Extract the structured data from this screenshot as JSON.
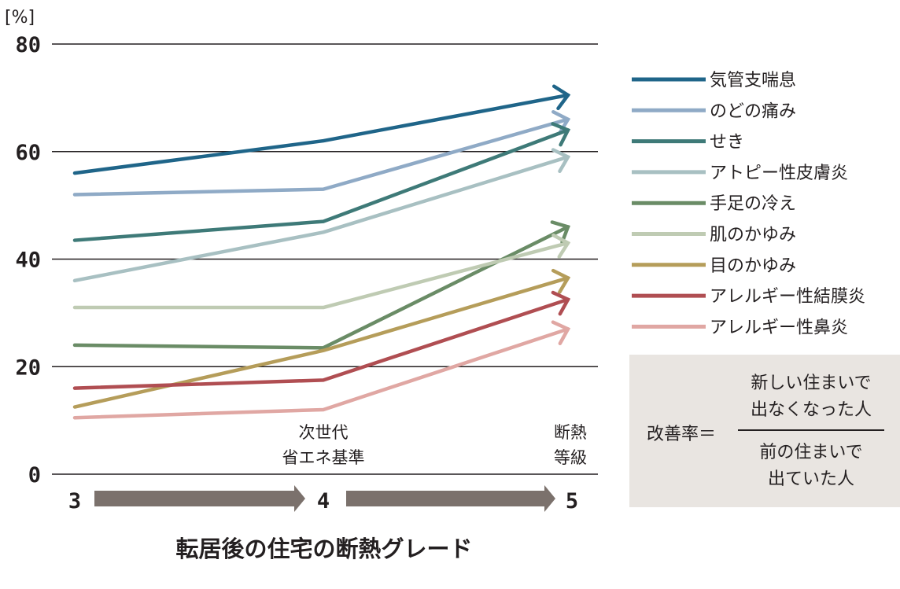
{
  "chart_data": {
    "type": "line",
    "y_unit": "[%]",
    "ylim": [
      0,
      80
    ],
    "y_ticks": [
      "0",
      "20",
      "40",
      "60",
      "80"
    ],
    "grid": true,
    "x": [
      3,
      4,
      5
    ],
    "x_ticks": [
      "3",
      "4",
      "5"
    ],
    "x_annotations": [
      {
        "x": 4,
        "lines": [
          "次世代",
          "省エネ基準"
        ]
      },
      {
        "x": 5,
        "lines": [
          "断熱",
          "等級"
        ]
      }
    ],
    "xlabel": "転居後の住宅の断熱グレード",
    "legend_position": "right",
    "series": [
      {
        "name": "気管支喘息",
        "color": "#1f6589",
        "values": [
          56,
          62,
          70.5
        ]
      },
      {
        "name": "のどの痛み",
        "color": "#8faac6",
        "values": [
          52,
          53,
          66
        ]
      },
      {
        "name": "せき",
        "color": "#3e7a78",
        "values": [
          43.5,
          47,
          64
        ]
      },
      {
        "name": "アトピー性皮膚炎",
        "color": "#a8c0c2",
        "values": [
          36,
          45,
          59
        ]
      },
      {
        "name": "手足の冷え",
        "color": "#6a8c66",
        "values": [
          24,
          23.5,
          46
        ]
      },
      {
        "name": "肌のかゆみ",
        "color": "#bfcbb3",
        "values": [
          31,
          31,
          43
        ]
      },
      {
        "name": "目のかゆみ",
        "color": "#b59d5a",
        "values": [
          12.5,
          23,
          36.5
        ]
      },
      {
        "name": "アレルギー性結膜炎",
        "color": "#b04e52",
        "values": [
          16,
          17.5,
          32.5
        ]
      },
      {
        "name": "アレルギー性鼻炎",
        "color": "#e0a7a3",
        "values": [
          10.5,
          12,
          27
        ]
      }
    ]
  },
  "formula": {
    "label": "改善率＝",
    "numerator": [
      "新しい住まいで",
      "出なくなった人"
    ],
    "denominator": [
      "前の住まいで",
      "出ていた人"
    ]
  },
  "colors": {
    "grid": "#231f20",
    "progress_arrow": "#7b716c",
    "formula_box": "#e9e5e1"
  }
}
